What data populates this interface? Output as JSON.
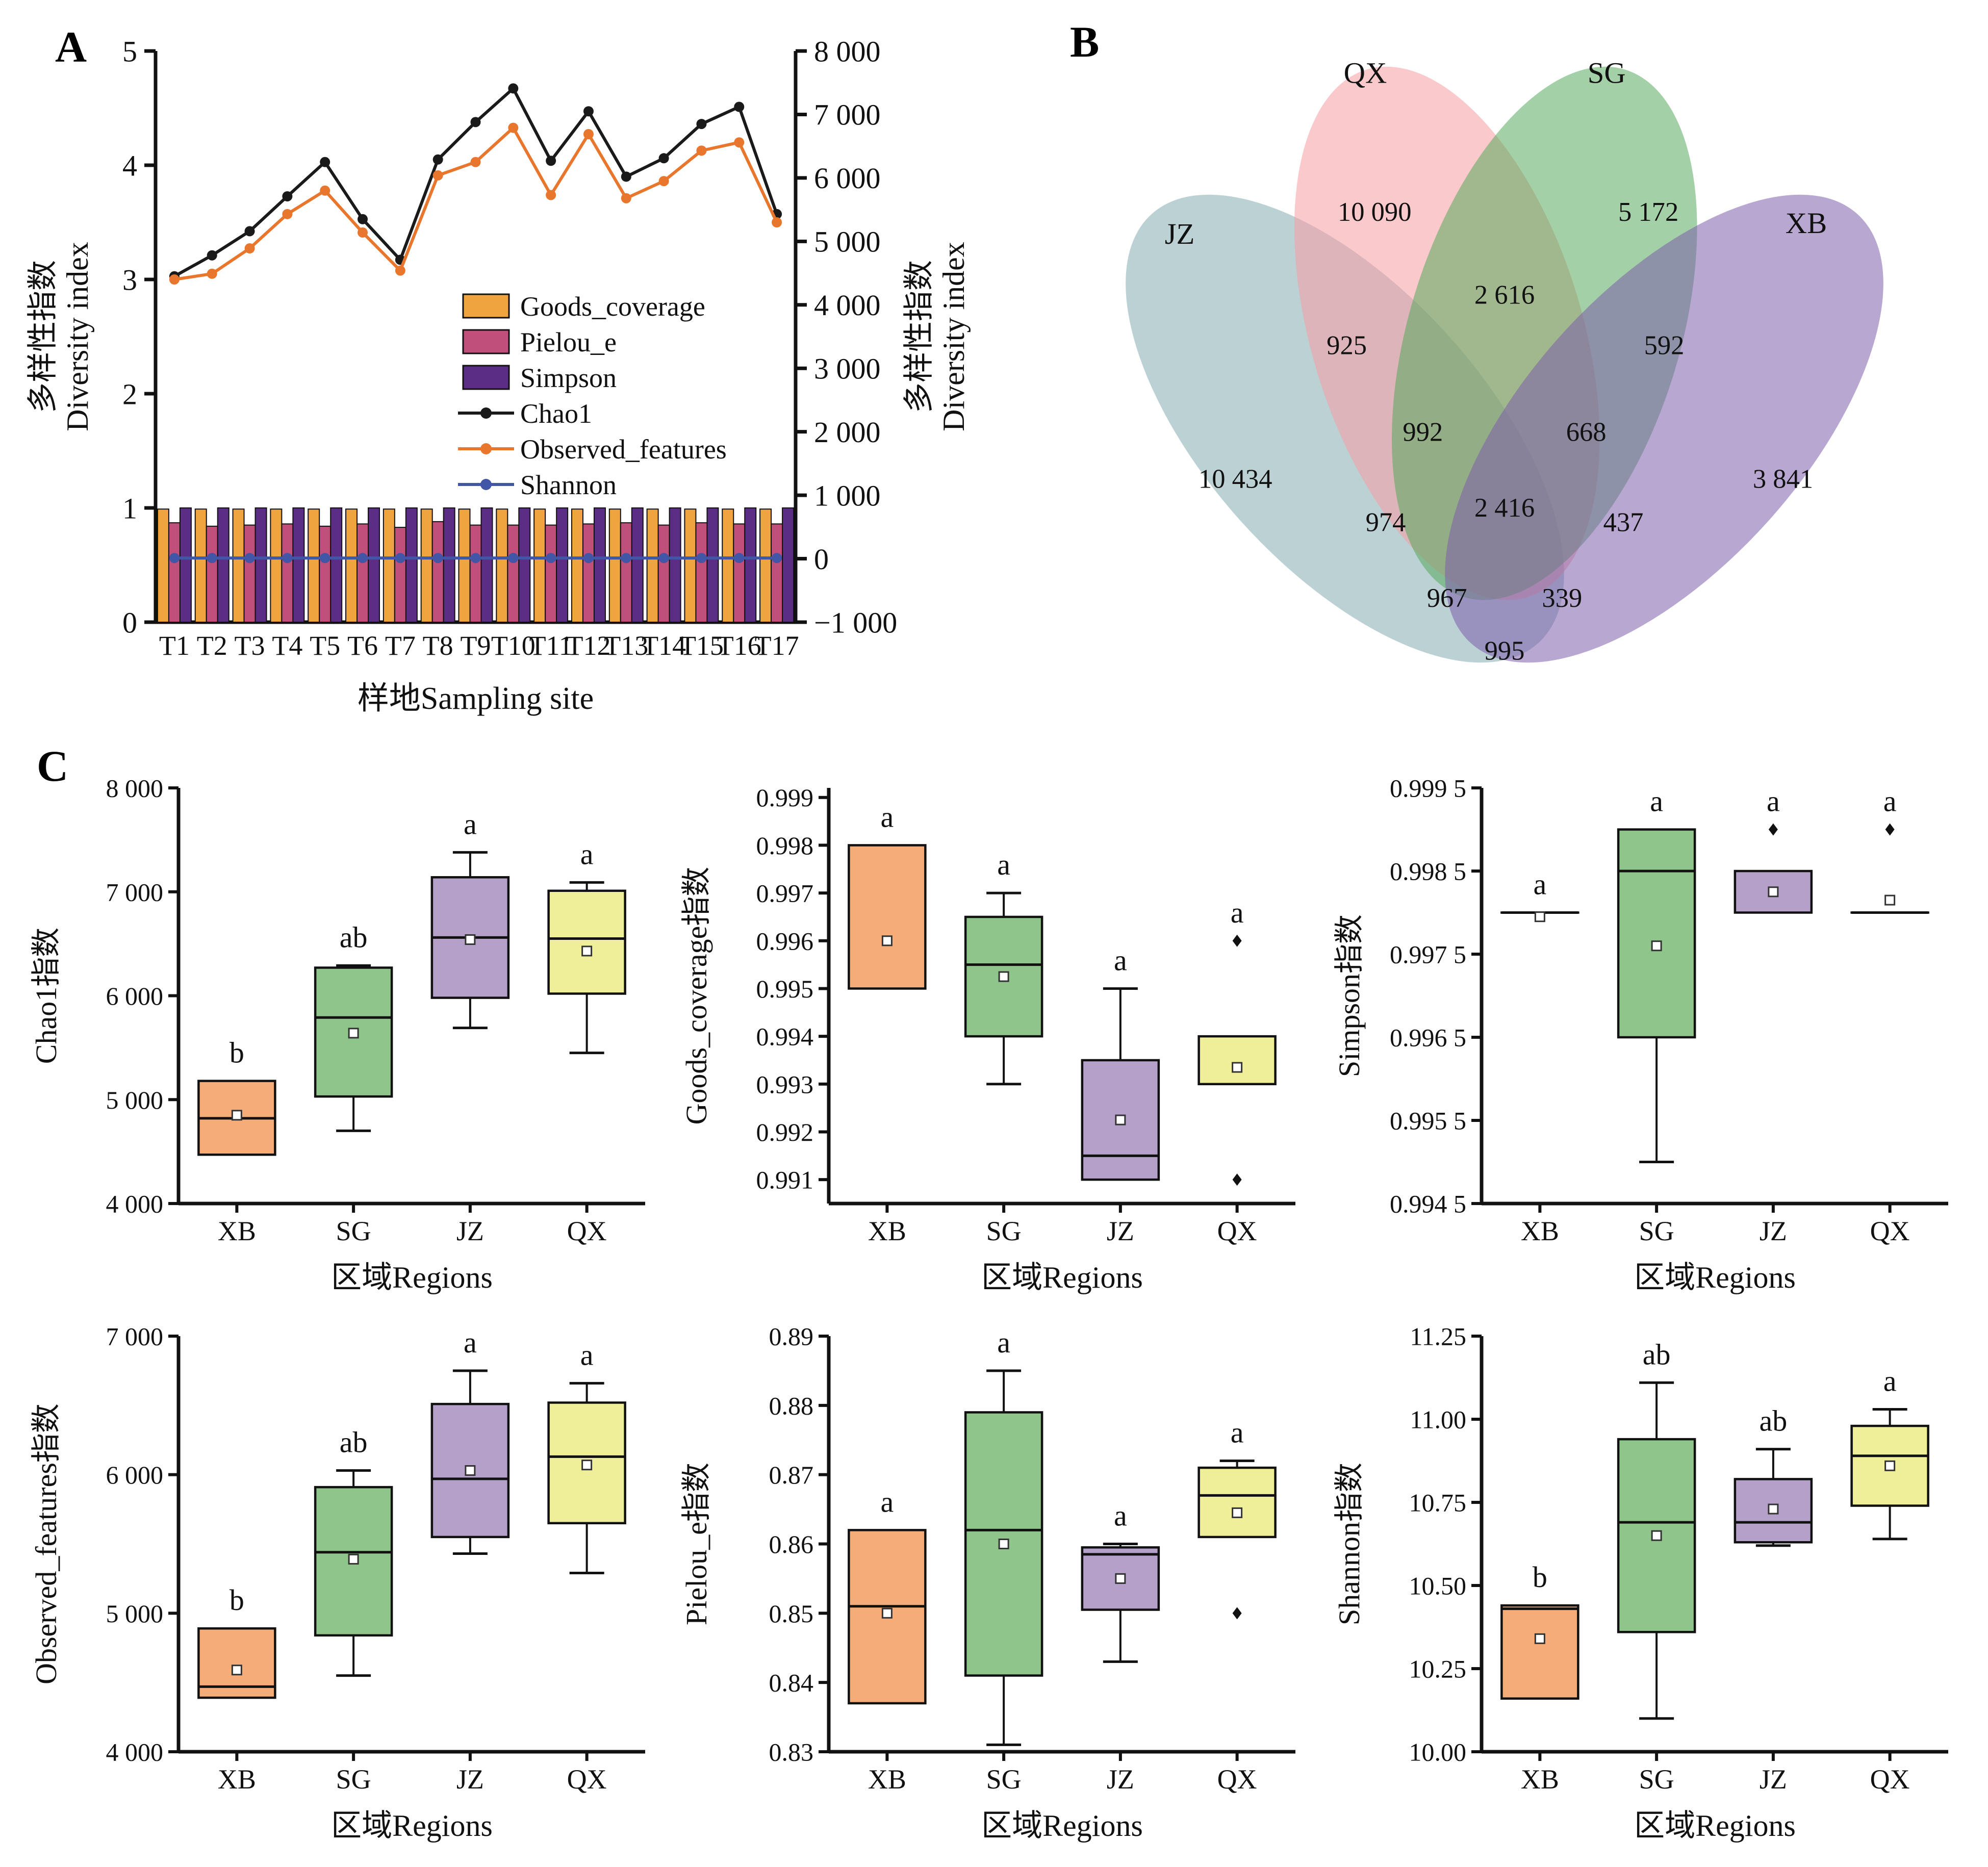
{
  "figure": {
    "panel_a_label": "A",
    "panel_b_label": "B",
    "panel_c_label": "C",
    "background": "#ffffff"
  },
  "chart_data": [
    {
      "id": "panelA",
      "type": "bar+line",
      "xlabel": "样地Sampling site",
      "categories": [
        "T1",
        "T2",
        "T3",
        "T4",
        "T5",
        "T6",
        "T7",
        "T8",
        "T9",
        "T10",
        "T11",
        "T12",
        "T13",
        "T14",
        "T15",
        "T16",
        "T17"
      ],
      "y_left": {
        "label_cn": "多样性指数",
        "label_en": "Diversity index",
        "lim": [
          0,
          5
        ],
        "ticks": [
          {
            "v": 0,
            "t": "0"
          },
          {
            "v": 1,
            "t": "1"
          },
          {
            "v": 2,
            "t": "2"
          },
          {
            "v": 3,
            "t": "3"
          },
          {
            "v": 4,
            "t": "4"
          },
          {
            "v": 5,
            "t": "5"
          }
        ]
      },
      "y_right": {
        "label_cn": "多样性指数",
        "label_en": "Diversity index",
        "lim": [
          -1000,
          8000
        ],
        "ticks": [
          {
            "v": 8000,
            "t": "8 000"
          },
          {
            "v": 7000,
            "t": "7 000"
          },
          {
            "v": 6000,
            "t": "6 000"
          },
          {
            "v": 5000,
            "t": "5 000"
          },
          {
            "v": 4000,
            "t": "4 000"
          },
          {
            "v": 3000,
            "t": "3 000"
          },
          {
            "v": 2000,
            "t": "2 000"
          },
          {
            "v": 1000,
            "t": "1 000"
          },
          {
            "v": 0,
            "t": "0"
          },
          {
            "v": -1000,
            "t": "−1 000"
          }
        ]
      },
      "bar_series": [
        {
          "name": "Goods_coverage",
          "color": "#F0A440",
          "axis": "left",
          "values": [
            0.99,
            0.99,
            0.99,
            0.99,
            0.99,
            0.99,
            0.99,
            0.99,
            0.99,
            0.99,
            0.99,
            0.99,
            0.99,
            0.99,
            0.99,
            0.99,
            0.99
          ]
        },
        {
          "name": "Pielou_e",
          "color": "#C04F7B",
          "axis": "left",
          "values": [
            0.87,
            0.84,
            0.85,
            0.86,
            0.84,
            0.86,
            0.83,
            0.88,
            0.85,
            0.85,
            0.85,
            0.86,
            0.87,
            0.85,
            0.87,
            0.86,
            0.86
          ]
        },
        {
          "name": "Simpson",
          "color": "#5B2D84",
          "axis": "left",
          "values": [
            1.0,
            1.0,
            1.0,
            1.0,
            1.0,
            1.0,
            1.0,
            1.0,
            1.0,
            1.0,
            1.0,
            1.0,
            1.0,
            1.0,
            1.0,
            1.0,
            1.0
          ]
        }
      ],
      "line_series": [
        {
          "name": "Chao1",
          "color": "#1A1A1A",
          "axis": "right",
          "values": [
            4450,
            4780,
            5160,
            5710,
            6250,
            5350,
            4710,
            6290,
            6880,
            7410,
            6270,
            7050,
            6020,
            6310,
            6850,
            7120,
            5430
          ]
        },
        {
          "name": "Observed_features",
          "color": "#E8762C",
          "axis": "right",
          "values": [
            4400,
            4490,
            4890,
            5430,
            5800,
            5140,
            4540,
            6040,
            6250,
            6790,
            5730,
            6690,
            5680,
            5950,
            6430,
            6560,
            5300
          ]
        },
        {
          "name": "Shannon",
          "color": "#4156A6",
          "axis": "right",
          "values": [
            10.4,
            10.4,
            10.3,
            10.4,
            10.5,
            10.3,
            10.1,
            10.8,
            10.9,
            11.1,
            10.6,
            10.9,
            10.7,
            10.6,
            10.9,
            11.0,
            10.6
          ]
        }
      ],
      "legend_order": [
        "Goods_coverage",
        "Pielou_e",
        "Simpson",
        "Chao1",
        "Observed_features",
        "Shannon"
      ]
    },
    {
      "id": "panelB",
      "type": "venn4",
      "sets": [
        {
          "name": "JZ",
          "color": "#85ACB1",
          "label_x": 0.15,
          "label_y": 0.315
        },
        {
          "name": "QX",
          "color": "#F59CA2",
          "label_x": 0.35,
          "label_y": 0.092
        },
        {
          "name": "SG",
          "color": "#57A95C",
          "label_x": 0.61,
          "label_y": 0.092
        },
        {
          "name": "XB",
          "color": "#7D5FAC",
          "label_x": 0.825,
          "label_y": 0.3
        }
      ],
      "ellipses": [
        {
          "set": "JZ",
          "cx": 0.328,
          "cy": 0.571,
          "rx": 0.15,
          "ry": 0.4,
          "rot": -42
        },
        {
          "set": "QX",
          "cx": 0.438,
          "cy": 0.439,
          "rx": 0.146,
          "ry": 0.382,
          "rot": -17
        },
        {
          "set": "SG",
          "cx": 0.543,
          "cy": 0.439,
          "rx": 0.146,
          "ry": 0.382,
          "rot": 17
        },
        {
          "set": "XB",
          "cx": 0.672,
          "cy": 0.571,
          "rx": 0.15,
          "ry": 0.4,
          "rot": 42
        }
      ],
      "regions": [
        {
          "sets": "QX",
          "value": "10 090",
          "x": 0.36,
          "y": 0.27
        },
        {
          "sets": "SG",
          "value": "5 172",
          "x": 0.655,
          "y": 0.27
        },
        {
          "sets": "JZ",
          "value": "10 434",
          "x": 0.21,
          "y": 0.64
        },
        {
          "sets": "XB",
          "value": "3 841",
          "x": 0.8,
          "y": 0.64
        },
        {
          "sets": "QX∩SG",
          "value": "2 616",
          "x": 0.5,
          "y": 0.385
        },
        {
          "sets": "JZ∩QX",
          "value": "925",
          "x": 0.33,
          "y": 0.455
        },
        {
          "sets": "SG∩XB",
          "value": "592",
          "x": 0.672,
          "y": 0.455
        },
        {
          "sets": "JZ∩QX∩SG",
          "value": "992",
          "x": 0.412,
          "y": 0.575
        },
        {
          "sets": "QX∩SG∩XB",
          "value": "668",
          "x": 0.588,
          "y": 0.575
        },
        {
          "sets": "JZ∩SG",
          "value": "974",
          "x": 0.372,
          "y": 0.7
        },
        {
          "sets": "QX∩XB",
          "value": "437",
          "x": 0.628,
          "y": 0.7
        },
        {
          "sets": "JZ∩QX∩SG∩XB",
          "value": "2 416",
          "x": 0.5,
          "y": 0.68
        },
        {
          "sets": "JZ∩SG∩XB",
          "value": "967",
          "x": 0.438,
          "y": 0.805
        },
        {
          "sets": "JZ∩QX∩XB",
          "value": "339",
          "x": 0.562,
          "y": 0.805
        },
        {
          "sets": "JZ∩XB",
          "value": "995",
          "x": 0.5,
          "y": 0.878
        }
      ]
    },
    {
      "id": "panelC",
      "type": "boxplot-grid",
      "xlabel": "区域Regions",
      "categories": [
        "XB",
        "SG",
        "JZ",
        "QX"
      ],
      "colors": {
        "XB": "#F4AC79",
        "SG": "#8FC48B",
        "JZ": "#B4A0C9",
        "QX": "#F0EF99"
      },
      "plots": [
        {
          "ylabel": "Chao1指数",
          "lim": [
            4000,
            8000
          ],
          "ticks": [
            {
              "v": 4000,
              "t": "4 000"
            },
            {
              "v": 5000,
              "t": "5 000"
            },
            {
              "v": 6000,
              "t": "6 000"
            },
            {
              "v": 7000,
              "t": "7 000"
            },
            {
              "v": 8000,
              "t": "8 000"
            }
          ],
          "boxes": [
            {
              "cat": "XB",
              "q1": 4470,
              "med": 4820,
              "q3": 5180,
              "lo": 4470,
              "hi": 5180,
              "mean": 4850,
              "letter": "b",
              "outliers": []
            },
            {
              "cat": "SG",
              "q1": 5030,
              "med": 5790,
              "q3": 6270,
              "lo": 4700,
              "hi": 6290,
              "mean": 5640,
              "letter": "ab",
              "outliers": []
            },
            {
              "cat": "JZ",
              "q1": 5980,
              "med": 6560,
              "q3": 7140,
              "lo": 5690,
              "hi": 7380,
              "mean": 6540,
              "letter": "a",
              "outliers": []
            },
            {
              "cat": "QX",
              "q1": 6020,
              "med": 6550,
              "q3": 7010,
              "lo": 5450,
              "hi": 7090,
              "mean": 6430,
              "letter": "a",
              "outliers": []
            }
          ]
        },
        {
          "ylabel": "Goods_coverage指数",
          "lim": [
            0.9905,
            0.9992
          ],
          "ticks": [
            {
              "v": 0.991,
              "t": "0.991"
            },
            {
              "v": 0.992,
              "t": "0.992"
            },
            {
              "v": 0.993,
              "t": "0.993"
            },
            {
              "v": 0.994,
              "t": "0.994"
            },
            {
              "v": 0.995,
              "t": "0.995"
            },
            {
              "v": 0.996,
              "t": "0.996"
            },
            {
              "v": 0.997,
              "t": "0.997"
            },
            {
              "v": 0.998,
              "t": "0.998"
            },
            {
              "v": 0.999,
              "t": "0.999"
            }
          ],
          "boxes": [
            {
              "cat": "XB",
              "q1": 0.995,
              "med": null,
              "q3": 0.998,
              "lo": 0.995,
              "hi": 0.998,
              "mean": 0.996,
              "letter": "a",
              "outliers": []
            },
            {
              "cat": "SG",
              "q1": 0.994,
              "med": 0.9955,
              "q3": 0.9965,
              "lo": 0.993,
              "hi": 0.997,
              "mean": 0.99525,
              "letter": "a",
              "outliers": []
            },
            {
              "cat": "JZ",
              "q1": 0.991,
              "med": 0.9915,
              "q3": 0.9935,
              "lo": 0.991,
              "hi": 0.995,
              "mean": 0.99225,
              "letter": "a",
              "outliers": []
            },
            {
              "cat": "QX",
              "q1": 0.993,
              "med": null,
              "q3": 0.994,
              "lo": 0.993,
              "hi": 0.994,
              "mean": 0.99335,
              "letter": "a",
              "outliers": [
                0.996,
                0.991
              ]
            }
          ]
        },
        {
          "ylabel": "Simpson指数",
          "lim": [
            0.9945,
            0.9995
          ],
          "ticks": [
            {
              "v": 0.9945,
              "t": "0.994 5"
            },
            {
              "v": 0.9955,
              "t": "0.995 5"
            },
            {
              "v": 0.9965,
              "t": "0.996 5"
            },
            {
              "v": 0.9975,
              "t": "0.997 5"
            },
            {
              "v": 0.9985,
              "t": "0.998 5"
            },
            {
              "v": 0.9995,
              "t": "0.999 5"
            }
          ],
          "boxes": [
            {
              "cat": "XB",
              "q1": 0.998,
              "med": 0.998,
              "q3": 0.998,
              "lo": 0.998,
              "hi": 0.998,
              "mean": 0.99795,
              "letter": "a",
              "outliers": []
            },
            {
              "cat": "SG",
              "q1": 0.9965,
              "med": 0.9985,
              "q3": 0.999,
              "lo": 0.995,
              "hi": 0.999,
              "mean": 0.9976,
              "letter": "a",
              "outliers": []
            },
            {
              "cat": "JZ",
              "q1": 0.998,
              "med": null,
              "q3": 0.9985,
              "lo": 0.998,
              "hi": 0.9985,
              "mean": 0.99825,
              "letter": "a",
              "outliers": [
                0.999
              ]
            },
            {
              "cat": "QX",
              "q1": 0.998,
              "med": 0.998,
              "q3": 0.998,
              "lo": 0.998,
              "hi": 0.998,
              "mean": 0.99815,
              "letter": "a",
              "outliers": [
                0.999
              ]
            }
          ]
        },
        {
          "ylabel": "Observed_features指数",
          "lim": [
            4000,
            7000
          ],
          "ticks": [
            {
              "v": 4000,
              "t": "4 000"
            },
            {
              "v": 5000,
              "t": "5 000"
            },
            {
              "v": 6000,
              "t": "6 000"
            },
            {
              "v": 7000,
              "t": "7 000"
            }
          ],
          "boxes": [
            {
              "cat": "XB",
              "q1": 4390,
              "med": 4470,
              "q3": 4890,
              "lo": 4390,
              "hi": 4890,
              "mean": 4590,
              "letter": "b",
              "outliers": []
            },
            {
              "cat": "SG",
              "q1": 4840,
              "med": 5440,
              "q3": 5910,
              "lo": 4550,
              "hi": 6030,
              "mean": 5390,
              "letter": "ab",
              "outliers": []
            },
            {
              "cat": "JZ",
              "q1": 5550,
              "med": 5970,
              "q3": 6510,
              "lo": 5430,
              "hi": 6750,
              "mean": 6030,
              "letter": "a",
              "outliers": []
            },
            {
              "cat": "QX",
              "q1": 5650,
              "med": 6130,
              "q3": 6520,
              "lo": 5290,
              "hi": 6660,
              "mean": 6070,
              "letter": "a",
              "outliers": []
            }
          ]
        },
        {
          "ylabel": "Pielou_e指数",
          "lim": [
            0.83,
            0.89
          ],
          "ticks": [
            {
              "v": 0.83,
              "t": "0.83"
            },
            {
              "v": 0.84,
              "t": "0.84"
            },
            {
              "v": 0.85,
              "t": "0.85"
            },
            {
              "v": 0.86,
              "t": "0.86"
            },
            {
              "v": 0.87,
              "t": "0.87"
            },
            {
              "v": 0.88,
              "t": "0.88"
            },
            {
              "v": 0.89,
              "t": "0.89"
            }
          ],
          "boxes": [
            {
              "cat": "XB",
              "q1": 0.837,
              "med": 0.851,
              "q3": 0.862,
              "lo": 0.837,
              "hi": 0.862,
              "mean": 0.85,
              "letter": "a",
              "outliers": []
            },
            {
              "cat": "SG",
              "q1": 0.841,
              "med": 0.862,
              "q3": 0.879,
              "lo": 0.831,
              "hi": 0.885,
              "mean": 0.86,
              "letter": "a",
              "outliers": []
            },
            {
              "cat": "JZ",
              "q1": 0.8505,
              "med": 0.8585,
              "q3": 0.8595,
              "lo": 0.843,
              "hi": 0.86,
              "mean": 0.855,
              "letter": "a",
              "outliers": []
            },
            {
              "cat": "QX",
              "q1": 0.861,
              "med": 0.867,
              "q3": 0.871,
              "lo": 0.861,
              "hi": 0.872,
              "mean": 0.8645,
              "letter": "a",
              "outliers": [
                0.85
              ]
            }
          ]
        },
        {
          "ylabel": "Shannon指数",
          "lim": [
            10.0,
            11.25
          ],
          "ticks": [
            {
              "v": 10.0,
              "t": "10.00"
            },
            {
              "v": 10.25,
              "t": "10.25"
            },
            {
              "v": 10.5,
              "t": "10.50"
            },
            {
              "v": 10.75,
              "t": "10.75"
            },
            {
              "v": 11.0,
              "t": "11.00"
            },
            {
              "v": 11.25,
              "t": "11.25"
            }
          ],
          "boxes": [
            {
              "cat": "XB",
              "q1": 10.16,
              "med": 10.43,
              "q3": 10.44,
              "lo": 10.16,
              "hi": 10.44,
              "mean": 10.34,
              "letter": "b",
              "outliers": []
            },
            {
              "cat": "SG",
              "q1": 10.36,
              "med": 10.69,
              "q3": 10.94,
              "lo": 10.1,
              "hi": 11.11,
              "mean": 10.65,
              "letter": "ab",
              "outliers": []
            },
            {
              "cat": "JZ",
              "q1": 10.63,
              "med": 10.69,
              "q3": 10.82,
              "lo": 10.62,
              "hi": 10.91,
              "mean": 10.73,
              "letter": "ab",
              "outliers": []
            },
            {
              "cat": "QX",
              "q1": 10.74,
              "med": 10.89,
              "q3": 10.98,
              "lo": 10.64,
              "hi": 11.03,
              "mean": 10.86,
              "letter": "a",
              "outliers": []
            }
          ]
        }
      ]
    }
  ]
}
